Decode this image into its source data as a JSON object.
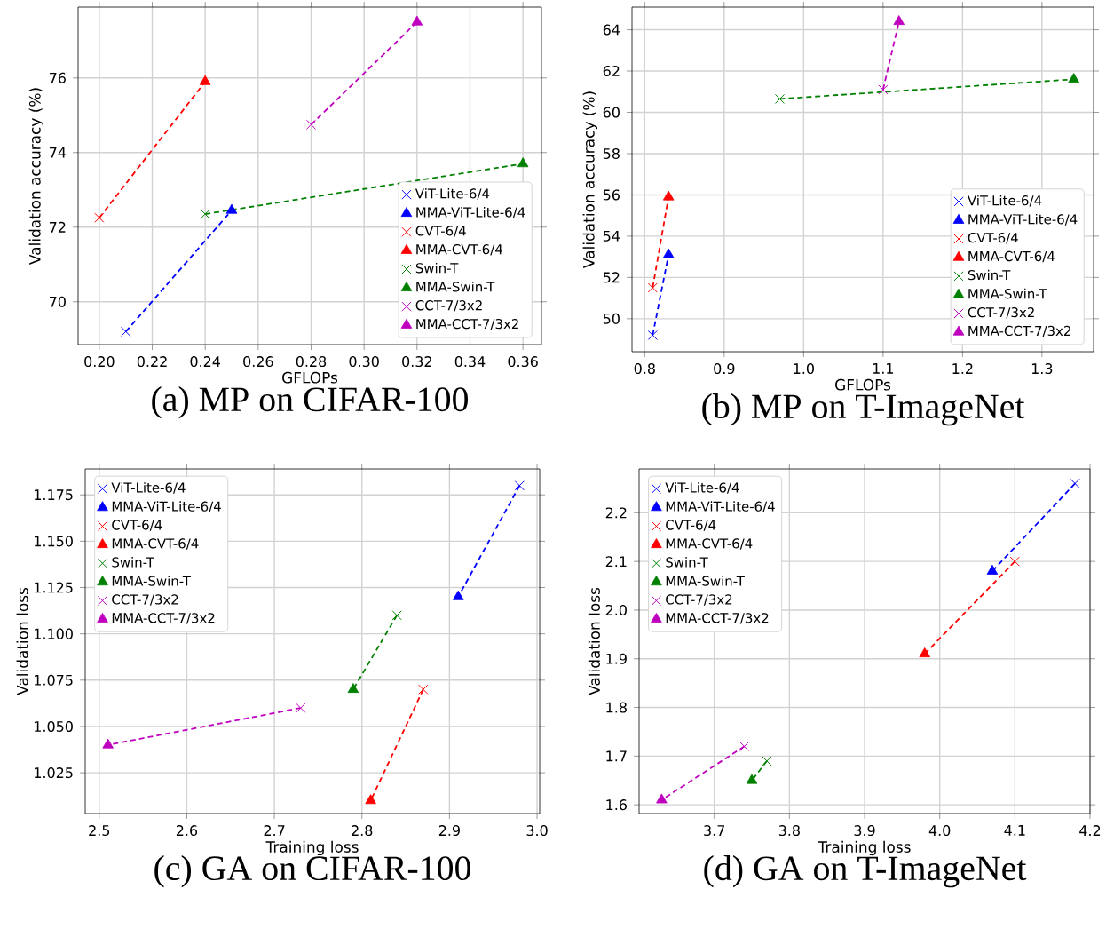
{
  "chart_data": [
    {
      "type": "scatter",
      "title": "(a) MP on CIFAR-100",
      "xlabel": "GFLOPs",
      "ylabel": "Validation accuracy (%)",
      "xlim": [
        0.192,
        0.367
      ],
      "ylim": [
        68.85,
        77.9
      ],
      "xticks": [
        {
          "value": 0.2,
          "label": "0.20"
        },
        {
          "value": 0.22,
          "label": "0.22"
        },
        {
          "value": 0.24,
          "label": "0.24"
        },
        {
          "value": 0.26,
          "label": "0.26"
        },
        {
          "value": 0.28,
          "label": "0.28"
        },
        {
          "value": 0.3,
          "label": "0.30"
        },
        {
          "value": 0.32,
          "label": "0.32"
        },
        {
          "value": 0.34,
          "label": "0.34"
        },
        {
          "value": 0.36,
          "label": "0.36"
        }
      ],
      "yticks": [
        70,
        72,
        74,
        76
      ],
      "grid": true,
      "legend": "bottom right",
      "series": [
        {
          "type": "line",
          "color": "#0000ff",
          "line_style": "dashed",
          "marker": "none",
          "x": [
            0.21,
            0.25
          ],
          "values": [
            69.2,
            72.45
          ]
        },
        {
          "type": "line",
          "color": "#ff0000",
          "line_style": "dashed",
          "marker": "none",
          "x": [
            0.2,
            0.24
          ],
          "values": [
            72.25,
            75.9
          ]
        },
        {
          "type": "line",
          "color": "#008000",
          "line_style": "dashed",
          "marker": "none",
          "x": [
            0.24,
            0.36
          ],
          "values": [
            72.35,
            73.7
          ]
        },
        {
          "type": "line",
          "color": "#bf00bf",
          "line_style": "dashed",
          "marker": "none",
          "x": [
            0.28,
            0.32
          ],
          "values": [
            74.75,
            77.5
          ]
        },
        {
          "name": "ViT-Lite-6/4",
          "color": "#0000ff",
          "marker": "cross",
          "x": [
            0.21
          ],
          "values": [
            69.2
          ]
        },
        {
          "name": "MMA-ViT-Lite-6/4",
          "color": "#0000ff",
          "marker": "triangle",
          "x": [
            0.25
          ],
          "values": [
            72.45
          ]
        },
        {
          "name": "CVT-6/4",
          "color": "#ff0000",
          "marker": "cross",
          "x": [
            0.2
          ],
          "values": [
            72.25
          ]
        },
        {
          "name": "MMA-CVT-6/4",
          "color": "#ff0000",
          "marker": "triangle",
          "x": [
            0.24
          ],
          "values": [
            75.9
          ]
        },
        {
          "name": "Swin-T",
          "color": "#008000",
          "marker": "cross",
          "x": [
            0.24
          ],
          "values": [
            72.35
          ]
        },
        {
          "name": "MMA-Swin-T",
          "color": "#008000",
          "marker": "triangle",
          "x": [
            0.36
          ],
          "values": [
            73.7
          ]
        },
        {
          "name": "CCT-7/3x2",
          "color": "#bf00bf",
          "marker": "cross",
          "x": [
            0.28
          ],
          "values": [
            74.75
          ]
        },
        {
          "name": "MMA-CCT-7/3x2",
          "color": "#bf00bf",
          "marker": "triangle",
          "x": [
            0.32
          ],
          "values": [
            77.5
          ]
        }
      ]
    },
    {
      "type": "scatter",
      "title": "(b) MP on T-ImageNet",
      "xlabel": "GFLOPs",
      "ylabel": "Validation accuracy (%)",
      "xlim": [
        0.784,
        1.365
      ],
      "ylim": [
        48.4,
        65.1
      ],
      "xticks": [
        0.8,
        0.9,
        {
          "value": 1.0,
          "label": "1.0"
        },
        1.1,
        1.2,
        1.3
      ],
      "yticks": [
        50,
        52,
        54,
        56,
        58,
        60,
        62,
        64
      ],
      "grid": true,
      "legend": "bottom right",
      "series": [
        {
          "type": "line",
          "color": "#0000ff",
          "line_style": "dashed",
          "marker": "none",
          "x": [
            0.81,
            0.83
          ],
          "values": [
            49.2,
            53.1
          ]
        },
        {
          "type": "line",
          "color": "#ff0000",
          "line_style": "dashed",
          "marker": "none",
          "x": [
            0.81,
            0.83
          ],
          "values": [
            51.5,
            55.9
          ]
        },
        {
          "type": "line",
          "color": "#008000",
          "line_style": "dashed",
          "marker": "none",
          "x": [
            0.97,
            1.34
          ],
          "values": [
            60.65,
            61.6
          ]
        },
        {
          "type": "line",
          "color": "#bf00bf",
          "line_style": "dashed",
          "marker": "none",
          "x": [
            1.1,
            1.12
          ],
          "values": [
            61.1,
            64.4
          ]
        },
        {
          "name": "ViT-Lite-6/4",
          "color": "#0000ff",
          "marker": "cross",
          "x": [
            0.81
          ],
          "values": [
            49.2
          ]
        },
        {
          "name": "MMA-ViT-Lite-6/4",
          "color": "#0000ff",
          "marker": "triangle",
          "x": [
            0.83
          ],
          "values": [
            53.1
          ]
        },
        {
          "name": "CVT-6/4",
          "color": "#ff0000",
          "marker": "cross",
          "x": [
            0.81
          ],
          "values": [
            51.5
          ]
        },
        {
          "name": "MMA-CVT-6/4",
          "color": "#ff0000",
          "marker": "triangle",
          "x": [
            0.83
          ],
          "values": [
            55.9
          ]
        },
        {
          "name": "Swin-T",
          "color": "#008000",
          "marker": "cross",
          "x": [
            0.97
          ],
          "values": [
            60.65
          ]
        },
        {
          "name": "MMA-Swin-T",
          "color": "#008000",
          "marker": "triangle",
          "x": [
            1.34
          ],
          "values": [
            61.6
          ]
        },
        {
          "name": "CCT-7/3x2",
          "color": "#bf00bf",
          "marker": "cross",
          "x": [
            1.1
          ],
          "values": [
            61.1
          ]
        },
        {
          "name": "MMA-CCT-7/3x2",
          "color": "#bf00bf",
          "marker": "triangle",
          "x": [
            1.12
          ],
          "values": [
            64.4
          ]
        }
      ]
    },
    {
      "type": "scatter",
      "title": "(c) GA on CIFAR-100",
      "xlabel": "Training loss",
      "ylabel": "Validation loss",
      "xlim": [
        2.484,
        3.003
      ],
      "ylim": [
        1.003,
        1.189
      ],
      "xticks": [
        2.5,
        2.6,
        2.7,
        2.8,
        2.9,
        {
          "value": 3.0,
          "label": "3.0"
        }
      ],
      "yticks": [
        1.025,
        {
          "value": 1.05,
          "label": "1.050"
        },
        1.075,
        {
          "value": 1.1,
          "label": "1.100"
        },
        1.125,
        {
          "value": 1.15,
          "label": "1.150"
        },
        1.175
      ],
      "grid": true,
      "legend": "top left",
      "series": [
        {
          "type": "line",
          "color": "#0000ff",
          "line_style": "dashed",
          "marker": "none",
          "x": [
            2.98,
            2.91
          ],
          "values": [
            1.18,
            1.12
          ]
        },
        {
          "type": "line",
          "color": "#ff0000",
          "line_style": "dashed",
          "marker": "none",
          "x": [
            2.87,
            2.81
          ],
          "values": [
            1.07,
            1.01
          ]
        },
        {
          "type": "line",
          "color": "#008000",
          "line_style": "dashed",
          "marker": "none",
          "x": [
            2.84,
            2.79
          ],
          "values": [
            1.11,
            1.07
          ]
        },
        {
          "type": "line",
          "color": "#bf00bf",
          "line_style": "dashed",
          "marker": "none",
          "x": [
            2.73,
            2.51
          ],
          "values": [
            1.06,
            1.04
          ]
        },
        {
          "name": "ViT-Lite-6/4",
          "color": "#0000ff",
          "marker": "cross",
          "x": [
            2.98
          ],
          "values": [
            1.18
          ]
        },
        {
          "name": "MMA-ViT-Lite-6/4",
          "color": "#0000ff",
          "marker": "triangle",
          "x": [
            2.91
          ],
          "values": [
            1.12
          ]
        },
        {
          "name": "CVT-6/4",
          "color": "#ff0000",
          "marker": "cross",
          "x": [
            2.87
          ],
          "values": [
            1.07
          ]
        },
        {
          "name": "MMA-CVT-6/4",
          "color": "#ff0000",
          "marker": "triangle",
          "x": [
            2.81
          ],
          "values": [
            1.01
          ]
        },
        {
          "name": "Swin-T",
          "color": "#008000",
          "marker": "cross",
          "x": [
            2.84
          ],
          "values": [
            1.11
          ]
        },
        {
          "name": "MMA-Swin-T",
          "color": "#008000",
          "marker": "triangle",
          "x": [
            2.79
          ],
          "values": [
            1.07
          ]
        },
        {
          "name": "CCT-7/3x2",
          "color": "#bf00bf",
          "marker": "cross",
          "x": [
            2.73
          ],
          "values": [
            1.06
          ]
        },
        {
          "name": "MMA-CCT-7/3x2",
          "color": "#bf00bf",
          "marker": "triangle",
          "x": [
            2.51
          ],
          "values": [
            1.04
          ]
        }
      ]
    },
    {
      "type": "scatter",
      "title": "(d) GA on T-ImageNet",
      "xlabel": "Training loss",
      "ylabel": "Validation loss",
      "xlim": [
        3.6,
        4.2
      ],
      "ylim": [
        1.582,
        2.29
      ],
      "xticks": [
        3.7,
        3.8,
        3.9,
        {
          "value": 4.0,
          "label": "4.0"
        },
        4.1,
        4.2
      ],
      "yticks": [
        1.6,
        1.7,
        1.8,
        1.9,
        {
          "value": 2.0,
          "label": "2.0"
        },
        2.1,
        2.2
      ],
      "grid": true,
      "legend": "top left",
      "series": [
        {
          "type": "line",
          "color": "#0000ff",
          "line_style": "dashed",
          "marker": "none",
          "x": [
            4.18,
            4.07
          ],
          "values": [
            2.26,
            2.08
          ]
        },
        {
          "type": "line",
          "color": "#ff0000",
          "line_style": "dashed",
          "marker": "none",
          "x": [
            4.1,
            3.98
          ],
          "values": [
            2.1,
            1.91
          ]
        },
        {
          "type": "line",
          "color": "#008000",
          "line_style": "dashed",
          "marker": "none",
          "x": [
            3.77,
            3.75
          ],
          "values": [
            1.69,
            1.65
          ]
        },
        {
          "type": "line",
          "color": "#bf00bf",
          "line_style": "dashed",
          "marker": "none",
          "x": [
            3.74,
            3.63
          ],
          "values": [
            1.72,
            1.61
          ]
        },
        {
          "name": "ViT-Lite-6/4",
          "color": "#0000ff",
          "marker": "cross",
          "x": [
            4.18
          ],
          "values": [
            2.26
          ]
        },
        {
          "name": "MMA-ViT-Lite-6/4",
          "color": "#0000ff",
          "marker": "triangle",
          "x": [
            4.07
          ],
          "values": [
            2.08
          ]
        },
        {
          "name": "CVT-6/4",
          "color": "#ff0000",
          "marker": "cross",
          "x": [
            4.1
          ],
          "values": [
            2.1
          ]
        },
        {
          "name": "MMA-CVT-6/4",
          "color": "#ff0000",
          "marker": "triangle",
          "x": [
            3.98
          ],
          "values": [
            1.91
          ]
        },
        {
          "name": "Swin-T",
          "color": "#008000",
          "marker": "cross",
          "x": [
            3.77
          ],
          "values": [
            1.69
          ]
        },
        {
          "name": "MMA-Swin-T",
          "color": "#008000",
          "marker": "triangle",
          "x": [
            3.75
          ],
          "values": [
            1.65
          ]
        },
        {
          "name": "CCT-7/3x2",
          "color": "#bf00bf",
          "marker": "cross",
          "x": [
            3.74
          ],
          "values": [
            1.72
          ]
        },
        {
          "name": "MMA-CCT-7/3x2",
          "color": "#bf00bf",
          "marker": "triangle",
          "x": [
            3.63
          ],
          "values": [
            1.61
          ]
        }
      ]
    }
  ]
}
